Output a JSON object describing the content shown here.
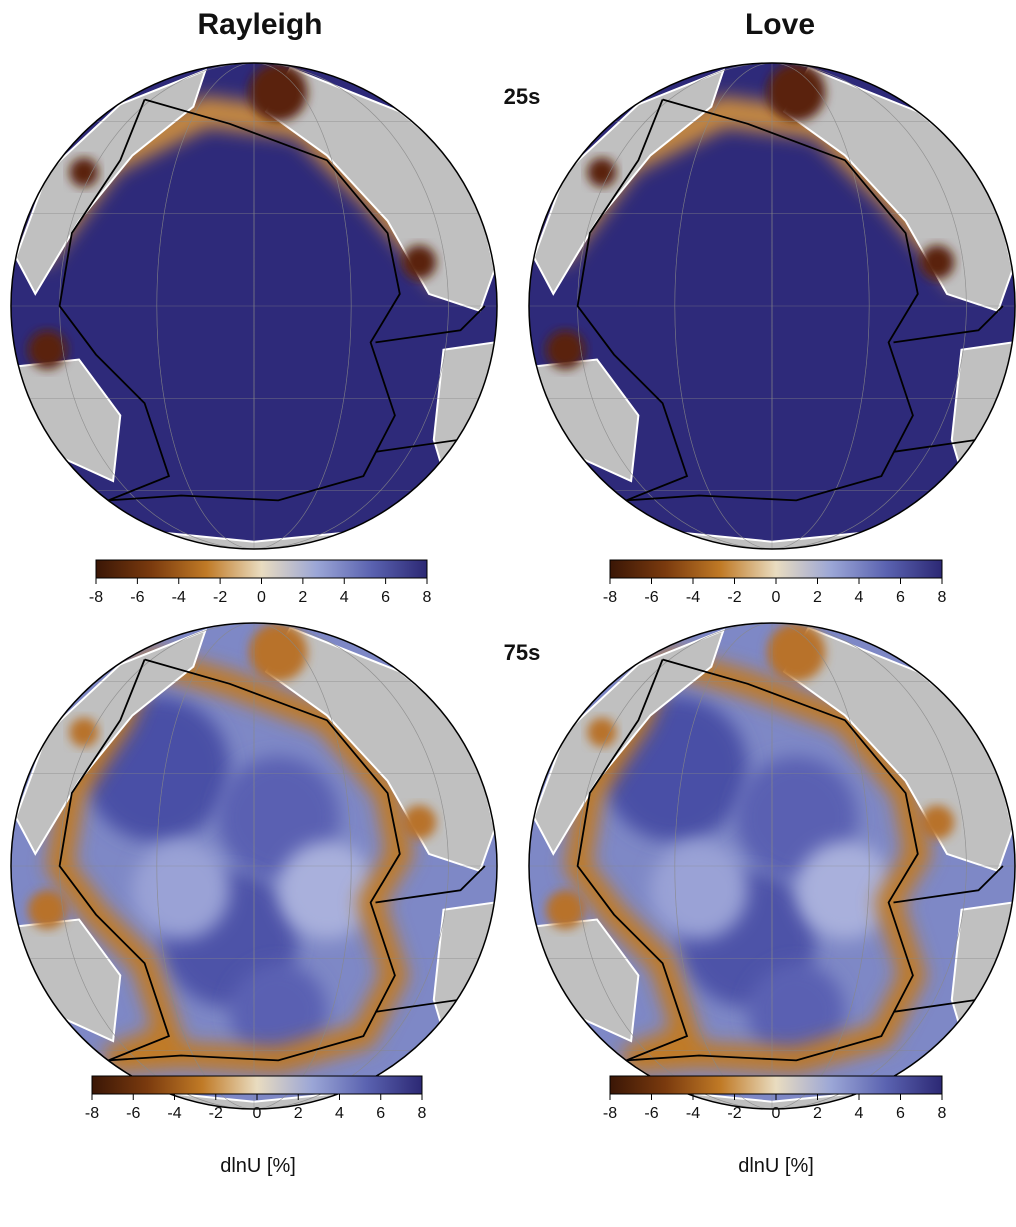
{
  "columns": [
    "Rayleigh",
    "Love"
  ],
  "rows": [
    {
      "period": "25s"
    },
    {
      "period": "75s",
      "colorbar_label": "dlnU [%]"
    }
  ],
  "colorbar": {
    "lim": [
      -8,
      8
    ],
    "ticks": [
      -8,
      -6,
      -4,
      -2,
      0,
      2,
      4,
      6,
      8
    ],
    "colors": [
      "#3a1606",
      "#7a3a0e",
      "#c07a26",
      "#e9dcc0",
      "#9ba6d6",
      "#5a62b0",
      "#2c2874"
    ]
  }
}
